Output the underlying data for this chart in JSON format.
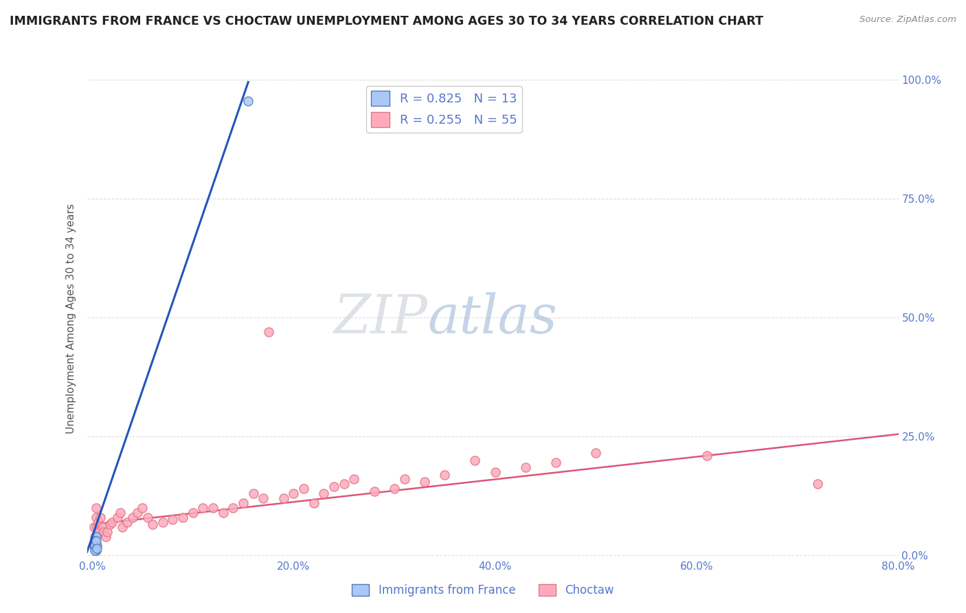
{
  "title": "IMMIGRANTS FROM FRANCE VS CHOCTAW UNEMPLOYMENT AMONG AGES 30 TO 34 YEARS CORRELATION CHART",
  "source": "Source: ZipAtlas.com",
  "ylabel": "Unemployment Among Ages 30 to 34 years",
  "xlim": [
    -0.005,
    0.8
  ],
  "ylim": [
    -0.005,
    1.0
  ],
  "xticks": [
    0.0,
    0.2,
    0.4,
    0.6,
    0.8
  ],
  "xticklabels": [
    "0.0%",
    "20.0%",
    "40.0%",
    "60.0%",
    "80.0%"
  ],
  "yticks": [
    0.0,
    0.25,
    0.5,
    0.75,
    1.0
  ],
  "yticklabels": [
    "0.0%",
    "25.0%",
    "50.0%",
    "75.0%",
    "100.0%"
  ],
  "blue_R": 0.825,
  "blue_N": 13,
  "pink_R": 0.255,
  "pink_N": 55,
  "blue_scatter_x": [
    0.003,
    0.004,
    0.005,
    0.003,
    0.004,
    0.002,
    0.003,
    0.004,
    0.003,
    0.003,
    0.004,
    0.005,
    0.155
  ],
  "blue_scatter_y": [
    0.03,
    0.04,
    0.02,
    0.015,
    0.01,
    0.02,
    0.03,
    0.015,
    0.02,
    0.01,
    0.03,
    0.015,
    0.955
  ],
  "pink_scatter_x": [
    0.002,
    0.003,
    0.004,
    0.004,
    0.005,
    0.006,
    0.007,
    0.008,
    0.01,
    0.012,
    0.014,
    0.015,
    0.018,
    0.02,
    0.025,
    0.028,
    0.03,
    0.035,
    0.04,
    0.045,
    0.05,
    0.055,
    0.06,
    0.07,
    0.08,
    0.09,
    0.1,
    0.11,
    0.12,
    0.13,
    0.14,
    0.15,
    0.16,
    0.17,
    0.175,
    0.19,
    0.2,
    0.21,
    0.22,
    0.23,
    0.24,
    0.25,
    0.26,
    0.28,
    0.3,
    0.31,
    0.33,
    0.35,
    0.38,
    0.4,
    0.43,
    0.46,
    0.5,
    0.61,
    0.72
  ],
  "pink_scatter_y": [
    0.06,
    0.04,
    0.1,
    0.08,
    0.06,
    0.07,
    0.05,
    0.08,
    0.06,
    0.05,
    0.04,
    0.05,
    0.065,
    0.07,
    0.08,
    0.09,
    0.06,
    0.07,
    0.08,
    0.09,
    0.1,
    0.08,
    0.065,
    0.07,
    0.075,
    0.08,
    0.09,
    0.1,
    0.1,
    0.09,
    0.1,
    0.11,
    0.13,
    0.12,
    0.47,
    0.12,
    0.13,
    0.14,
    0.11,
    0.13,
    0.145,
    0.15,
    0.16,
    0.135,
    0.14,
    0.16,
    0.155,
    0.17,
    0.2,
    0.175,
    0.185,
    0.195,
    0.215,
    0.21,
    0.15
  ],
  "blue_line_x": [
    -0.005,
    0.155
  ],
  "blue_line_y": [
    0.007,
    0.995
  ],
  "pink_line_x": [
    0.0,
    0.8
  ],
  "pink_line_y": [
    0.065,
    0.255
  ],
  "blue_color": "#aac8f5",
  "blue_edge_color": "#5577bb",
  "pink_color": "#ffaabc",
  "pink_edge_color": "#dd7788",
  "blue_line_color": "#2255bb",
  "pink_line_color": "#dd5577",
  "watermark_zip": "ZIP",
  "watermark_atlas": "atlas",
  "background_color": "#ffffff",
  "grid_color": "#dddddd",
  "title_color": "#222222",
  "axis_label_color": "#555555",
  "tick_color": "#5577cc",
  "legend_label1": "Immigrants from France",
  "legend_label2": "Choctaw"
}
